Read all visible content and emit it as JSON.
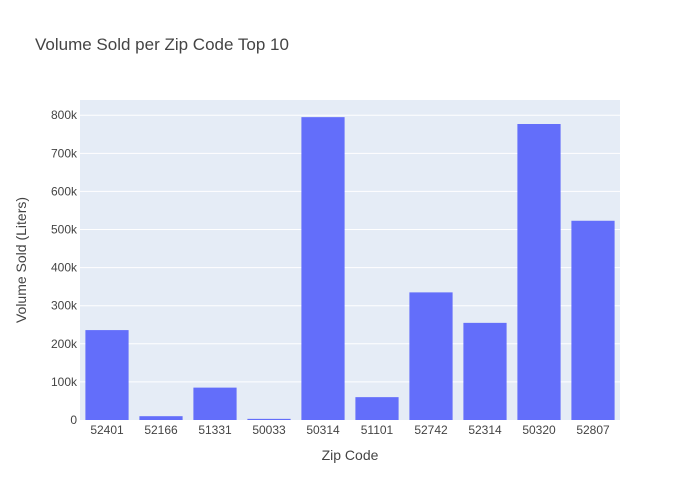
{
  "chart_data": {
    "type": "bar",
    "title": "Volume Sold per Zip Code Top 10",
    "xlabel": "Zip Code",
    "ylabel": "Volume Sold (Liters)",
    "categories": [
      "52401",
      "52166",
      "51331",
      "50033",
      "50314",
      "51101",
      "52742",
      "52314",
      "50320",
      "52807"
    ],
    "values": [
      236000,
      10000,
      85000,
      3000,
      795000,
      60000,
      335000,
      255000,
      777000,
      523000
    ],
    "ylim": [
      0,
      840000
    ],
    "yticks": [
      0,
      100000,
      200000,
      300000,
      400000,
      500000,
      600000,
      700000,
      800000
    ],
    "ytick_labels": [
      "0",
      "100k",
      "200k",
      "300k",
      "400k",
      "500k",
      "600k",
      "700k",
      "800k"
    ],
    "grid": true,
    "colors": {
      "bar": "#636efa",
      "plot_bg": "#e5ecf6"
    }
  }
}
